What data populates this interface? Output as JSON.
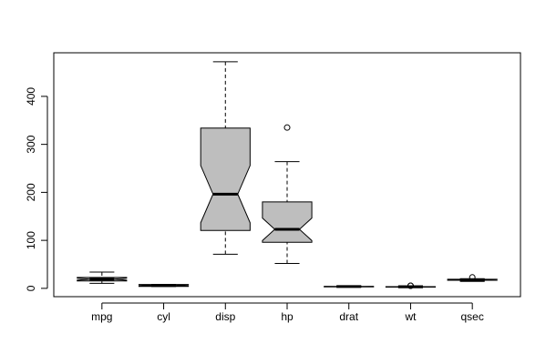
{
  "chart_data": {
    "type": "boxplot",
    "categories": [
      "mpg",
      "cyl",
      "disp",
      "hp",
      "drat",
      "wt",
      "qsec"
    ],
    "boxes": [
      {
        "whisker_low": 10.4,
        "q1": 15.35,
        "median": 19.2,
        "q3": 22.8,
        "whisker_high": 33.9,
        "notch_low": 17.12,
        "notch_high": 21.28,
        "outliers": []
      },
      {
        "whisker_low": 4,
        "q1": 4,
        "median": 6,
        "q3": 8,
        "whisker_high": 8,
        "notch_low": 4.88,
        "notch_high": 7.12,
        "outliers": []
      },
      {
        "whisker_low": 71.1,
        "q1": 120.65,
        "median": 196.3,
        "q3": 334,
        "whisker_high": 472,
        "notch_low": 136.7,
        "notch_high": 255.9,
        "outliers": []
      },
      {
        "whisker_low": 52,
        "q1": 96,
        "median": 123,
        "q3": 180,
        "whisker_high": 264,
        "notch_low": 99.5,
        "notch_high": 146.5,
        "outliers": [
          335
        ]
      },
      {
        "whisker_low": 2.76,
        "q1": 3.08,
        "median": 3.695,
        "q3": 3.92,
        "whisker_high": 4.93,
        "notch_low": 3.46,
        "notch_high": 3.93,
        "outliers": []
      },
      {
        "whisker_low": 1.513,
        "q1": 2.5425,
        "median": 3.325,
        "q3": 3.65,
        "whisker_high": 5.25,
        "notch_low": 3.016,
        "notch_high": 3.634,
        "outliers": [
          5.424,
          5.345
        ]
      },
      {
        "whisker_low": 14.5,
        "q1": 16.885,
        "median": 17.71,
        "q3": 18.9,
        "whisker_high": 20.22,
        "notch_low": 17.15,
        "notch_high": 18.27,
        "outliers": [
          22.9
        ]
      }
    ],
    "color": "#bebebe",
    "ylim": [
      -17.31,
      490.82
    ],
    "yticks": [
      0,
      100,
      200,
      300,
      400
    ]
  }
}
